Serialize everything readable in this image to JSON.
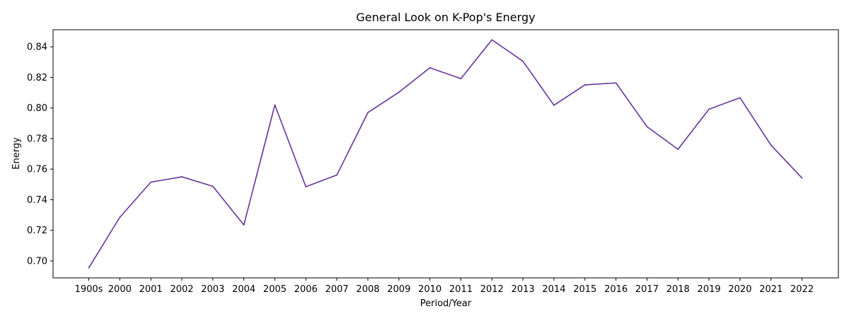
{
  "chart_data": {
    "type": "line",
    "title": "General Look on K-Pop's Energy",
    "xlabel": "Period/Year",
    "ylabel": "Energy",
    "categories": [
      "1900s",
      "2000",
      "2001",
      "2002",
      "2003",
      "2004",
      "2005",
      "2006",
      "2007",
      "2008",
      "2009",
      "2010",
      "2011",
      "2012",
      "2013",
      "2014",
      "2015",
      "2016",
      "2017",
      "2018",
      "2019",
      "2020",
      "2021",
      "2022"
    ],
    "series": [
      {
        "values": [
          0.6955,
          0.7285,
          0.7515,
          0.755,
          0.7488,
          0.7235,
          0.802,
          0.7485,
          0.7562,
          0.797,
          0.8103,
          0.8263,
          0.8192,
          0.8446,
          0.8306,
          0.8018,
          0.8151,
          0.8164,
          0.7878,
          0.773,
          0.7992,
          0.8067,
          0.7757,
          0.7542
        ],
        "color": "#663399"
      }
    ],
    "yticks": [
      "0.70",
      "0.72",
      "0.74",
      "0.76",
      "0.78",
      "0.80",
      "0.82",
      "0.84"
    ],
    "ylim": [
      0.6889,
      0.8512
    ],
    "grid": false,
    "legend": "none"
  }
}
